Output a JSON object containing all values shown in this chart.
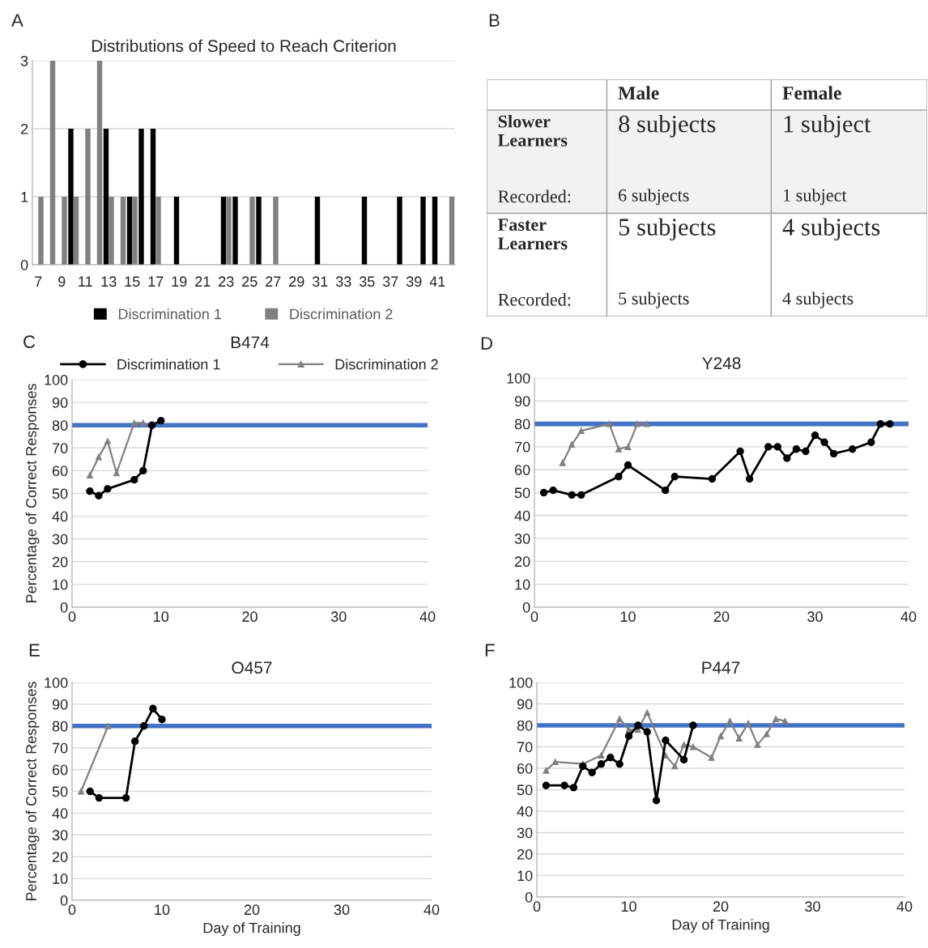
{
  "chart_data": [
    {
      "type": "bar",
      "title": "Distributions of Speed to Reach Criterion",
      "annotations": [
        "A"
      ],
      "categories": [
        "7",
        null,
        "9",
        null,
        "11",
        null,
        "13",
        null,
        "15",
        null,
        "17",
        null,
        "19",
        null,
        "21",
        null,
        "23",
        null,
        "25",
        null,
        "27",
        null,
        "29",
        null,
        "31",
        null,
        "33",
        null,
        "35",
        null,
        "37",
        null,
        "39",
        null,
        "41",
        null
      ],
      "series": [
        {
          "name": "Discrimination 1",
          "color": "#000000",
          "values": [
            0,
            0,
            0,
            2,
            0,
            0,
            2,
            0,
            1,
            2,
            2,
            0,
            1,
            0,
            0,
            0,
            1,
            1,
            0,
            1,
            0,
            0,
            0,
            0,
            1,
            0,
            0,
            0,
            1,
            0,
            0,
            1,
            0,
            1,
            1,
            0
          ]
        },
        {
          "name": "Discrimination 2",
          "color": "#808080",
          "values": [
            1,
            3,
            1,
            1,
            2,
            3,
            1,
            1,
            1,
            0,
            1,
            0,
            0,
            0,
            0,
            0,
            1,
            0,
            1,
            0,
            1,
            0,
            0,
            0,
            0,
            0,
            0,
            0,
            0,
            0,
            0,
            0,
            0,
            0,
            0,
            1
          ]
        }
      ],
      "ylim": [
        0,
        3
      ],
      "yticks": [
        0,
        1,
        2,
        3
      ],
      "grid": "y",
      "legend": "bottom"
    },
    {
      "type": "other",
      "annotations": [
        "B"
      ],
      "categories": [
        null,
        "Male",
        "Female"
      ],
      "y_categories": [
        "Slower Learners",
        "Recorded:",
        "Faster Learners",
        "Recorded:"
      ],
      "cell_labels": [
        [
          "8 subjects",
          "1 subject"
        ],
        [
          "6 subjects",
          "1 subject"
        ],
        [
          "5 subjects",
          "4 subjects"
        ],
        [
          "5 subjects",
          "4 subjects"
        ]
      ]
    },
    {
      "type": "line",
      "title": "B474",
      "annotations": [
        "C"
      ],
      "ylabel": "Percentage of Correct Responses",
      "series": [
        {
          "name": "Discrimination 1",
          "color": "#000000",
          "marker": "circle",
          "x": [
            2,
            3,
            4,
            7,
            8,
            9,
            10
          ],
          "values": [
            51,
            49,
            52,
            56,
            60,
            80,
            82
          ]
        },
        {
          "name": "Discrimination 2",
          "color": "#808080",
          "marker": "triangle",
          "x": [
            2,
            3,
            4,
            5,
            7,
            8
          ],
          "values": [
            58,
            66,
            73,
            59,
            81,
            81
          ]
        }
      ],
      "xlim": [
        0,
        40
      ],
      "xticks": [
        0,
        10,
        20,
        30,
        40
      ],
      "ylim": [
        0,
        100
      ],
      "yticks": [
        0,
        10,
        20,
        30,
        40,
        50,
        60,
        70,
        80,
        90,
        100
      ],
      "ref_lines": [
        {
          "axis": "y",
          "value": 80,
          "color": "#4472c4"
        }
      ],
      "grid": "y",
      "legend": "top"
    },
    {
      "type": "line",
      "title": "Y248",
      "annotations": [
        "D"
      ],
      "series": [
        {
          "color": "#000000",
          "marker": "circle",
          "x": [
            1,
            2,
            4,
            5,
            9,
            10,
            14,
            15,
            19,
            22,
            23,
            25,
            26,
            27,
            28,
            29,
            30,
            31,
            32,
            34,
            36,
            37,
            38
          ],
          "values": [
            50,
            51,
            49,
            49,
            57,
            62,
            51,
            57,
            56,
            68,
            56,
            70,
            70,
            65,
            69,
            68,
            75,
            72,
            67,
            69,
            72,
            80,
            80
          ]
        },
        {
          "color": "#808080",
          "marker": "triangle",
          "x": [
            3,
            4,
            5,
            8,
            9,
            10,
            11,
            12
          ],
          "values": [
            63,
            71,
            77,
            80,
            69,
            70,
            80,
            80
          ]
        }
      ],
      "xlim": [
        0,
        40
      ],
      "xticks": [
        0,
        10,
        20,
        30,
        40
      ],
      "ylim": [
        0,
        100
      ],
      "yticks": [
        0,
        10,
        20,
        30,
        40,
        50,
        60,
        70,
        80,
        90,
        100
      ],
      "ref_lines": [
        {
          "axis": "y",
          "value": 80,
          "color": "#4472c4"
        }
      ],
      "grid": "y"
    },
    {
      "type": "line",
      "title": "O457",
      "annotations": [
        "E"
      ],
      "ylabel": "Percentage of Correct Responses",
      "xlabel": "Day of Training",
      "series": [
        {
          "color": "#000000",
          "marker": "circle",
          "x": [
            2,
            3,
            6,
            7,
            8,
            9,
            10
          ],
          "values": [
            50,
            47,
            47,
            73,
            80,
            88,
            83
          ]
        },
        {
          "color": "#808080",
          "marker": "triangle",
          "x": [
            1,
            4
          ],
          "values": [
            50,
            80
          ]
        }
      ],
      "xlim": [
        0,
        40
      ],
      "xticks": [
        0,
        10,
        20,
        30,
        40
      ],
      "ylim": [
        0,
        100
      ],
      "yticks": [
        0,
        10,
        20,
        30,
        40,
        50,
        60,
        70,
        80,
        90,
        100
      ],
      "ref_lines": [
        {
          "axis": "y",
          "value": 80,
          "color": "#4472c4"
        }
      ],
      "grid": "y"
    },
    {
      "type": "line",
      "title": "P447",
      "annotations": [
        "F"
      ],
      "xlabel": "Day of Training",
      "series": [
        {
          "color": "#000000",
          "marker": "circle",
          "x": [
            1,
            3,
            4,
            5,
            6,
            7,
            8,
            9,
            10,
            11,
            12,
            13,
            14,
            16,
            17
          ],
          "values": [
            52,
            52,
            51,
            61,
            58,
            62,
            65,
            62,
            75,
            80,
            77,
            45,
            73,
            64,
            80
          ]
        },
        {
          "color": "#808080",
          "marker": "triangle",
          "x": [
            1,
            2,
            5,
            7,
            9,
            10,
            11,
            12,
            14,
            15,
            16,
            17,
            19,
            20,
            21,
            22,
            23,
            24,
            25,
            26,
            27
          ],
          "values": [
            59,
            63,
            62,
            66,
            83,
            78,
            78,
            86,
            66,
            61,
            71,
            70,
            65,
            75,
            82,
            74,
            81,
            71,
            76,
            83,
            82
          ]
        }
      ],
      "xlim": [
        0,
        40
      ],
      "xticks": [
        0,
        10,
        20,
        30,
        40
      ],
      "ylim": [
        0,
        100
      ],
      "yticks": [
        0,
        10,
        20,
        30,
        40,
        50,
        60,
        70,
        80,
        90,
        100
      ],
      "ref_lines": [
        {
          "axis": "y",
          "value": 80,
          "color": "#4472c4"
        }
      ],
      "grid": "y"
    }
  ]
}
